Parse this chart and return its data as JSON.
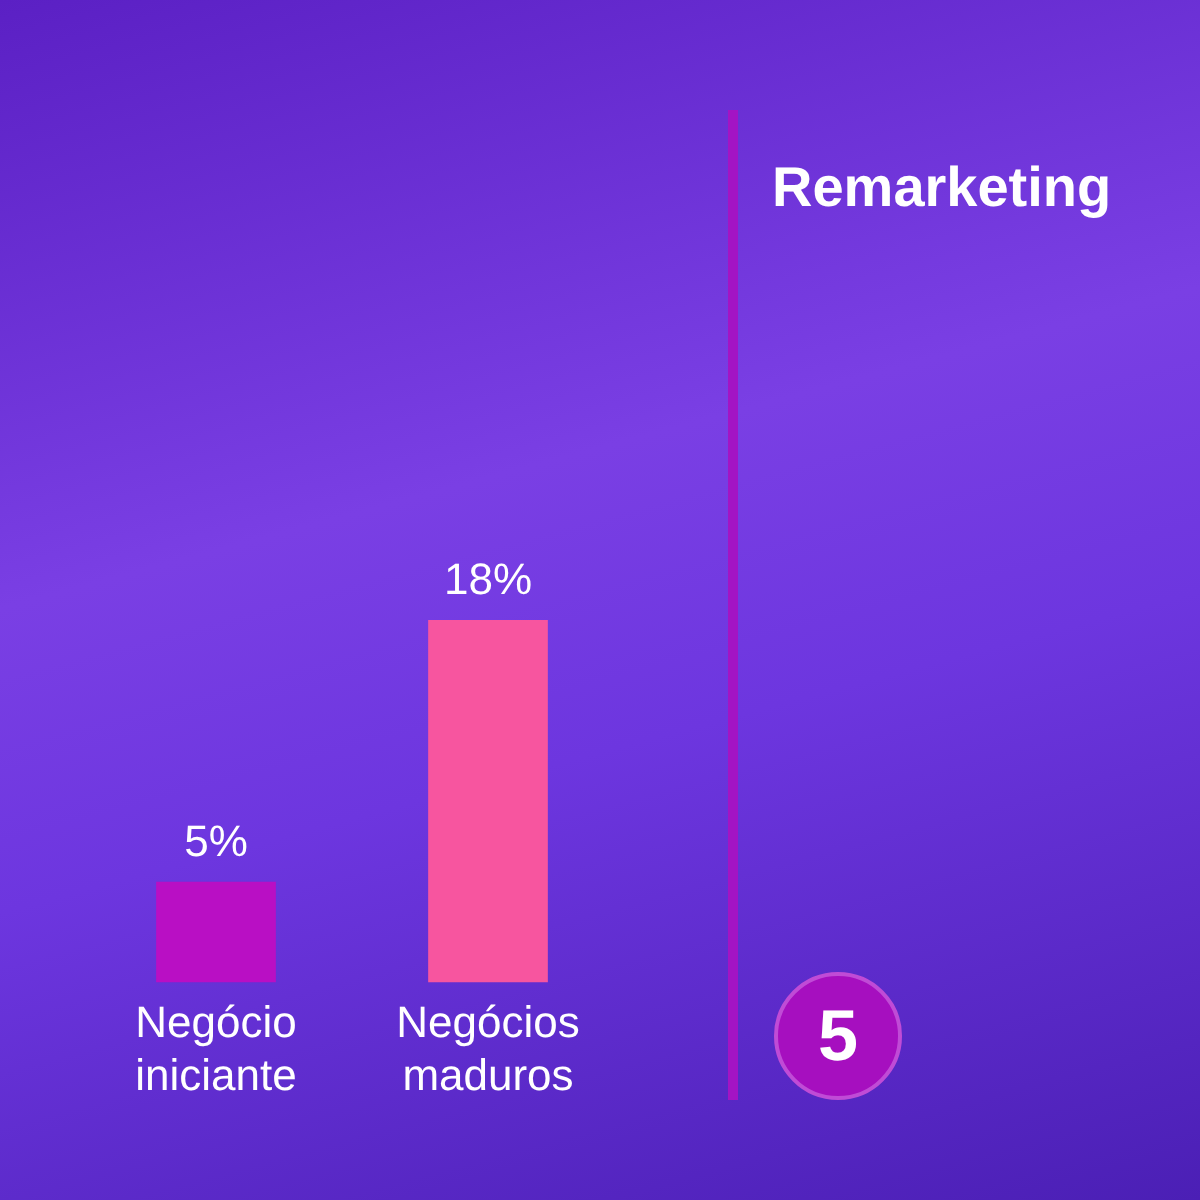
{
  "chart_data": {
    "type": "bar",
    "title": "Remarketing",
    "categories": [
      "Negócio iniciante",
      "Negócios maduros"
    ],
    "values": [
      5,
      18
    ],
    "colors": [
      "#b90fc4",
      "#f7559f"
    ],
    "value_labels": [
      "5%",
      "18%"
    ],
    "grid": false,
    "legend": false,
    "annotations": [
      "5"
    ]
  }
}
